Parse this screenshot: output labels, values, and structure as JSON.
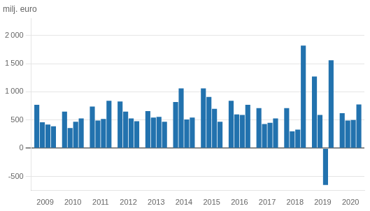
{
  "chart_data": {
    "type": "bar",
    "ylabel": "milj. euro",
    "categories": [
      "2009",
      "2010",
      "2011",
      "2012",
      "2013",
      "2014",
      "2015",
      "2016",
      "2017",
      "2018",
      "2019",
      "2020"
    ],
    "series": [
      {
        "color": "#2272AE",
        "values": [
          770,
          650,
          740,
          830,
          660,
          820,
          1060,
          840,
          710,
          710,
          1270,
          620
        ]
      },
      {
        "color": "#2272AE",
        "values": [
          460,
          360,
          490,
          650,
          545,
          1060,
          910,
          600,
          430,
          300,
          590,
          490
        ]
      },
      {
        "color": "#2272AE",
        "values": [
          420,
          470,
          520,
          530,
          555,
          510,
          700,
          590,
          450,
          330,
          -650,
          500
        ]
      },
      {
        "color": "#2272AE",
        "values": [
          390,
          530,
          840,
          480,
          470,
          545,
          470,
          770,
          530,
          1820,
          1560,
          775
        ]
      }
    ],
    "ylim": [
      -750,
      2300
    ],
    "yticks": [
      -500,
      0,
      500,
      {
        "value": 1000,
        "label": "1 000"
      },
      {
        "value": 1500,
        "label": "1 500"
      },
      {
        "value": 2000,
        "label": "2 000"
      }
    ],
    "grid": true
  }
}
